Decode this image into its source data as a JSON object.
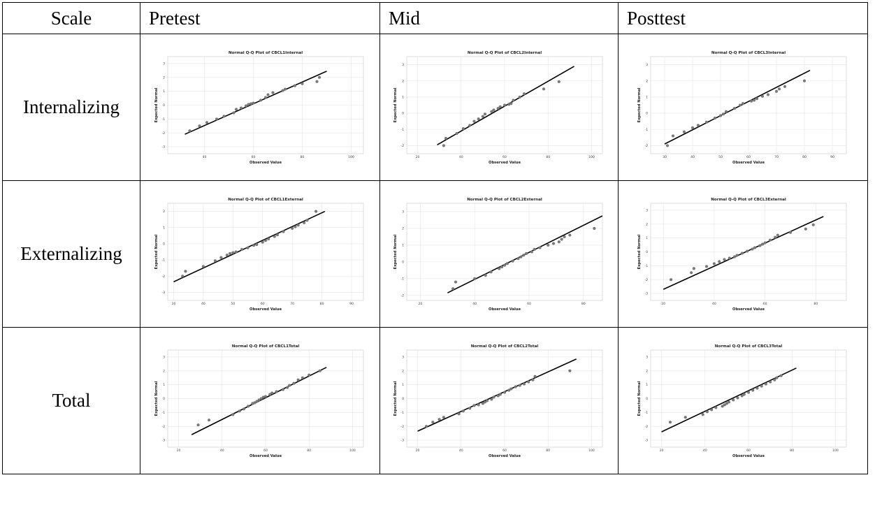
{
  "table": {
    "headers": [
      "Scale",
      "Pretest",
      "Mid",
      "Posttest"
    ],
    "rows": [
      "Internalizing",
      "Externalizing",
      "Total"
    ]
  },
  "chart_data": [
    {
      "type": "scatter",
      "title": "Normal Q-Q Plot of CBCL1Internal",
      "xlabel": "Observed Value",
      "ylabel": "Expected Normal",
      "xlim": [
        25,
        105
      ],
      "ylim": [
        -3.5,
        3.5
      ],
      "xticks": [
        40,
        60,
        80,
        100
      ],
      "yticks": [
        -3,
        -2,
        -1,
        0,
        1,
        2,
        3
      ],
      "line": [
        [
          32,
          -2.1
        ],
        [
          90,
          2.45
        ]
      ],
      "points": [
        [
          34,
          -1.85
        ],
        [
          38,
          -1.5
        ],
        [
          41,
          -1.25
        ],
        [
          45,
          -1.0
        ],
        [
          48,
          -0.8
        ],
        [
          52,
          -0.55
        ],
        [
          53,
          -0.3
        ],
        [
          55,
          -0.2
        ],
        [
          57,
          -0.05
        ],
        [
          58,
          0.05
        ],
        [
          59,
          0.1
        ],
        [
          60,
          0.15
        ],
        [
          63,
          0.35
        ],
        [
          65,
          0.55
        ],
        [
          66,
          0.75
        ],
        [
          68,
          0.9
        ],
        [
          72,
          1.05
        ],
        [
          73,
          1.15
        ],
        [
          77,
          1.4
        ],
        [
          80,
          1.55
        ],
        [
          86,
          1.7
        ],
        [
          87,
          2.0
        ]
      ]
    },
    {
      "type": "scatter",
      "title": "Normal Q-Q Plot of CBCL2Internal",
      "xlabel": "Observed Value",
      "ylabel": "Expected Normal",
      "xlim": [
        15,
        105
      ],
      "ylim": [
        -2.5,
        3.5
      ],
      "xticks": [
        20,
        40,
        60,
        80,
        100
      ],
      "yticks": [
        -2,
        -1,
        0,
        1,
        2,
        3
      ],
      "line": [
        [
          29,
          -1.95
        ],
        [
          92,
          2.9
        ]
      ],
      "points": [
        [
          32,
          -2.0
        ],
        [
          33,
          -1.55
        ],
        [
          38,
          -1.25
        ],
        [
          41,
          -0.95
        ],
        [
          44,
          -0.75
        ],
        [
          46,
          -0.5
        ],
        [
          48,
          -0.35
        ],
        [
          50,
          -0.2
        ],
        [
          51,
          -0.05
        ],
        [
          54,
          0.1
        ],
        [
          55,
          0.2
        ],
        [
          57,
          0.3
        ],
        [
          58,
          0.4
        ],
        [
          60,
          0.5
        ],
        [
          62,
          0.55
        ],
        [
          63,
          0.6
        ],
        [
          64,
          0.8
        ],
        [
          67,
          1.0
        ],
        [
          69,
          1.2
        ],
        [
          78,
          1.5
        ],
        [
          85,
          1.95
        ]
      ]
    },
    {
      "type": "scatter",
      "title": "Normal Q-Q Plot of CBCL3Internal",
      "xlabel": "Observed Value",
      "ylabel": "Expected Normal",
      "xlim": [
        25,
        95
      ],
      "ylim": [
        -2.5,
        3.5
      ],
      "xticks": [
        30,
        40,
        50,
        60,
        70,
        80,
        90
      ],
      "yticks": [
        -2,
        -1,
        0,
        1,
        2,
        3
      ],
      "line": [
        [
          30,
          -1.9
        ],
        [
          82,
          2.65
        ]
      ],
      "points": [
        [
          31,
          -2.0
        ],
        [
          33,
          -1.4
        ],
        [
          37,
          -1.15
        ],
        [
          40,
          -0.9
        ],
        [
          42,
          -0.75
        ],
        [
          45,
          -0.55
        ],
        [
          48,
          -0.3
        ],
        [
          50,
          -0.15
        ],
        [
          51,
          -0.05
        ],
        [
          52,
          0.1
        ],
        [
          55,
          0.3
        ],
        [
          57,
          0.5
        ],
        [
          58,
          0.6
        ],
        [
          61,
          0.75
        ],
        [
          62,
          0.8
        ],
        [
          63,
          0.9
        ],
        [
          65,
          1.05
        ],
        [
          67,
          1.15
        ],
        [
          70,
          1.35
        ],
        [
          71,
          1.5
        ],
        [
          73,
          1.65
        ],
        [
          80,
          2.0
        ]
      ]
    },
    {
      "type": "scatter",
      "title": "Normal Q-Q Plot of CBCL1External",
      "xlabel": "Observed Value",
      "ylabel": "Expected Normal",
      "xlim": [
        28,
        94
      ],
      "ylim": [
        -3.5,
        2.5
      ],
      "xticks": [
        30,
        40,
        50,
        60,
        70,
        80,
        90
      ],
      "yticks": [
        -3,
        -2,
        -1,
        0,
        1,
        2
      ],
      "line": [
        [
          30,
          -2.35
        ],
        [
          81,
          2.0
        ]
      ],
      "points": [
        [
          33,
          -2.0
        ],
        [
          34,
          -1.7
        ],
        [
          40,
          -1.4
        ],
        [
          44,
          -1.05
        ],
        [
          46,
          -0.85
        ],
        [
          48,
          -0.7
        ],
        [
          49,
          -0.6
        ],
        [
          50,
          -0.55
        ],
        [
          51,
          -0.5
        ],
        [
          53,
          -0.35
        ],
        [
          55,
          -0.25
        ],
        [
          57,
          -0.1
        ],
        [
          58,
          -0.05
        ],
        [
          60,
          0.1
        ],
        [
          61,
          0.2
        ],
        [
          62,
          0.3
        ],
        [
          64,
          0.45
        ],
        [
          65,
          0.55
        ],
        [
          67,
          0.75
        ],
        [
          70,
          0.95
        ],
        [
          71,
          1.05
        ],
        [
          72,
          1.15
        ],
        [
          74,
          1.3
        ],
        [
          75,
          1.45
        ],
        [
          78,
          2.0
        ]
      ]
    },
    {
      "type": "scatter",
      "title": "Normal Q-Q Plot of CBCL2External",
      "xlabel": "Observed Value",
      "ylabel": "Expected Normal",
      "xlim": [
        15,
        87
      ],
      "ylim": [
        -2.3,
        3.5
      ],
      "xticks": [
        20,
        40,
        60,
        80
      ],
      "yticks": [
        -2,
        -1,
        0,
        1,
        2,
        3
      ],
      "line": [
        [
          30,
          -1.85
        ],
        [
          87,
          2.75
        ]
      ],
      "points": [
        [
          32,
          -1.6
        ],
        [
          33,
          -1.2
        ],
        [
          40,
          -1.0
        ],
        [
          44,
          -0.8
        ],
        [
          46,
          -0.6
        ],
        [
          49,
          -0.4
        ],
        [
          50,
          -0.3
        ],
        [
          51,
          -0.2
        ],
        [
          52,
          -0.1
        ],
        [
          54,
          0.05
        ],
        [
          56,
          0.2
        ],
        [
          57,
          0.3
        ],
        [
          58,
          0.4
        ],
        [
          59,
          0.5
        ],
        [
          61,
          0.6
        ],
        [
          62,
          0.75
        ],
        [
          64,
          0.85
        ],
        [
          67,
          1.0
        ],
        [
          69,
          1.1
        ],
        [
          71,
          1.2
        ],
        [
          72,
          1.35
        ],
        [
          73,
          1.5
        ],
        [
          75,
          1.6
        ],
        [
          84,
          2.0
        ]
      ]
    },
    {
      "type": "scatter",
      "title": "Normal Q-Q Plot of CBCL3External",
      "xlabel": "Observed Value",
      "ylabel": "Expected Normal",
      "xlim": [
        15,
        92
      ],
      "ylim": [
        -3.5,
        3.5
      ],
      "xticks": [
        20,
        40,
        60,
        80
      ],
      "yticks": [
        -3,
        -2,
        -1,
        0,
        1,
        2,
        3
      ],
      "line": [
        [
          20,
          -2.7
        ],
        [
          83,
          2.55
        ]
      ],
      "points": [
        [
          23,
          -2.0
        ],
        [
          31,
          -1.5
        ],
        [
          32,
          -1.2
        ],
        [
          37,
          -1.05
        ],
        [
          40,
          -0.85
        ],
        [
          42,
          -0.7
        ],
        [
          44,
          -0.55
        ],
        [
          46,
          -0.45
        ],
        [
          48,
          -0.35
        ],
        [
          49,
          -0.25
        ],
        [
          51,
          -0.1
        ],
        [
          53,
          0.05
        ],
        [
          55,
          0.2
        ],
        [
          56,
          0.3
        ],
        [
          58,
          0.45
        ],
        [
          59,
          0.55
        ],
        [
          60,
          0.65
        ],
        [
          62,
          0.85
        ],
        [
          64,
          1.05
        ],
        [
          65,
          1.2
        ],
        [
          70,
          1.4
        ],
        [
          76,
          1.65
        ],
        [
          79,
          1.95
        ]
      ]
    },
    {
      "type": "scatter",
      "title": "Normal Q-Q Plot of CBCL1Total",
      "xlabel": "Observed Value",
      "ylabel": "Expected Normal",
      "xlim": [
        15,
        105
      ],
      "ylim": [
        -3.5,
        3.5
      ],
      "xticks": [
        20,
        40,
        60,
        80,
        100
      ],
      "yticks": [
        -3,
        -2,
        -1,
        0,
        1,
        2,
        3
      ],
      "line": [
        [
          26,
          -2.6
        ],
        [
          88,
          2.25
        ]
      ],
      "points": [
        [
          29,
          -1.9
        ],
        [
          34,
          -1.55
        ],
        [
          45,
          -1.15
        ],
        [
          48,
          -0.9
        ],
        [
          50,
          -0.75
        ],
        [
          52,
          -0.55
        ],
        [
          54,
          -0.35
        ],
        [
          55,
          -0.3
        ],
        [
          56,
          -0.2
        ],
        [
          57,
          -0.1
        ],
        [
          58,
          0.0
        ],
        [
          59,
          0.1
        ],
        [
          60,
          0.15
        ],
        [
          62,
          0.3
        ],
        [
          63,
          0.4
        ],
        [
          65,
          0.5
        ],
        [
          68,
          0.65
        ],
        [
          70,
          0.8
        ],
        [
          71,
          0.95
        ],
        [
          73,
          1.1
        ],
        [
          75,
          1.35
        ],
        [
          77,
          1.5
        ],
        [
          80,
          1.7
        ],
        [
          85,
          2.0
        ]
      ]
    },
    {
      "type": "scatter",
      "title": "Normal Q-Q Plot of CBCL2Total",
      "xlabel": "Observed Value",
      "ylabel": "Expected Normal",
      "xlim": [
        15,
        105
      ],
      "ylim": [
        -3.5,
        3.5
      ],
      "xticks": [
        20,
        40,
        60,
        80,
        100
      ],
      "yticks": [
        -3,
        -2,
        -1,
        0,
        1,
        2,
        3
      ],
      "line": [
        [
          20,
          -2.35
        ],
        [
          93,
          2.85
        ]
      ],
      "points": [
        [
          24,
          -2.0
        ],
        [
          27,
          -1.7
        ],
        [
          30,
          -1.5
        ],
        [
          32,
          -1.35
        ],
        [
          39,
          -1.1
        ],
        [
          41,
          -0.9
        ],
        [
          44,
          -0.7
        ],
        [
          46,
          -0.5
        ],
        [
          48,
          -0.45
        ],
        [
          50,
          -0.35
        ],
        [
          51,
          -0.25
        ],
        [
          52,
          -0.15
        ],
        [
          54,
          -0.05
        ],
        [
          55,
          0.1
        ],
        [
          57,
          0.2
        ],
        [
          58,
          0.3
        ],
        [
          60,
          0.45
        ],
        [
          62,
          0.6
        ],
        [
          63,
          0.7
        ],
        [
          65,
          0.85
        ],
        [
          67,
          0.95
        ],
        [
          69,
          1.05
        ],
        [
          71,
          1.2
        ],
        [
          73,
          1.35
        ],
        [
          74,
          1.6
        ],
        [
          90,
          2.0
        ]
      ]
    },
    {
      "type": "scatter",
      "title": "Normal Q-Q Plot of CBCL3Total",
      "xlabel": "Observed Value",
      "ylabel": "Expected Normal",
      "xlim": [
        15,
        105
      ],
      "ylim": [
        -3.5,
        3.5
      ],
      "xticks": [
        20,
        40,
        60,
        80,
        100
      ],
      "yticks": [
        -3,
        -2,
        -1,
        0,
        1,
        2,
        3
      ],
      "line": [
        [
          20,
          -2.4
        ],
        [
          82,
          2.2
        ]
      ],
      "points": [
        [
          24,
          -1.7
        ],
        [
          31,
          -1.35
        ],
        [
          39,
          -1.15
        ],
        [
          41,
          -0.95
        ],
        [
          43,
          -0.8
        ],
        [
          45,
          -0.65
        ],
        [
          48,
          -0.55
        ],
        [
          49,
          -0.45
        ],
        [
          50,
          -0.35
        ],
        [
          51,
          -0.25
        ],
        [
          53,
          -0.1
        ],
        [
          55,
          0.05
        ],
        [
          57,
          0.2
        ],
        [
          58,
          0.3
        ],
        [
          60,
          0.45
        ],
        [
          62,
          0.6
        ],
        [
          64,
          0.75
        ],
        [
          66,
          0.9
        ],
        [
          68,
          1.05
        ],
        [
          70,
          1.2
        ],
        [
          72,
          1.35
        ],
        [
          73,
          1.5
        ],
        [
          75,
          1.65
        ]
      ]
    }
  ]
}
